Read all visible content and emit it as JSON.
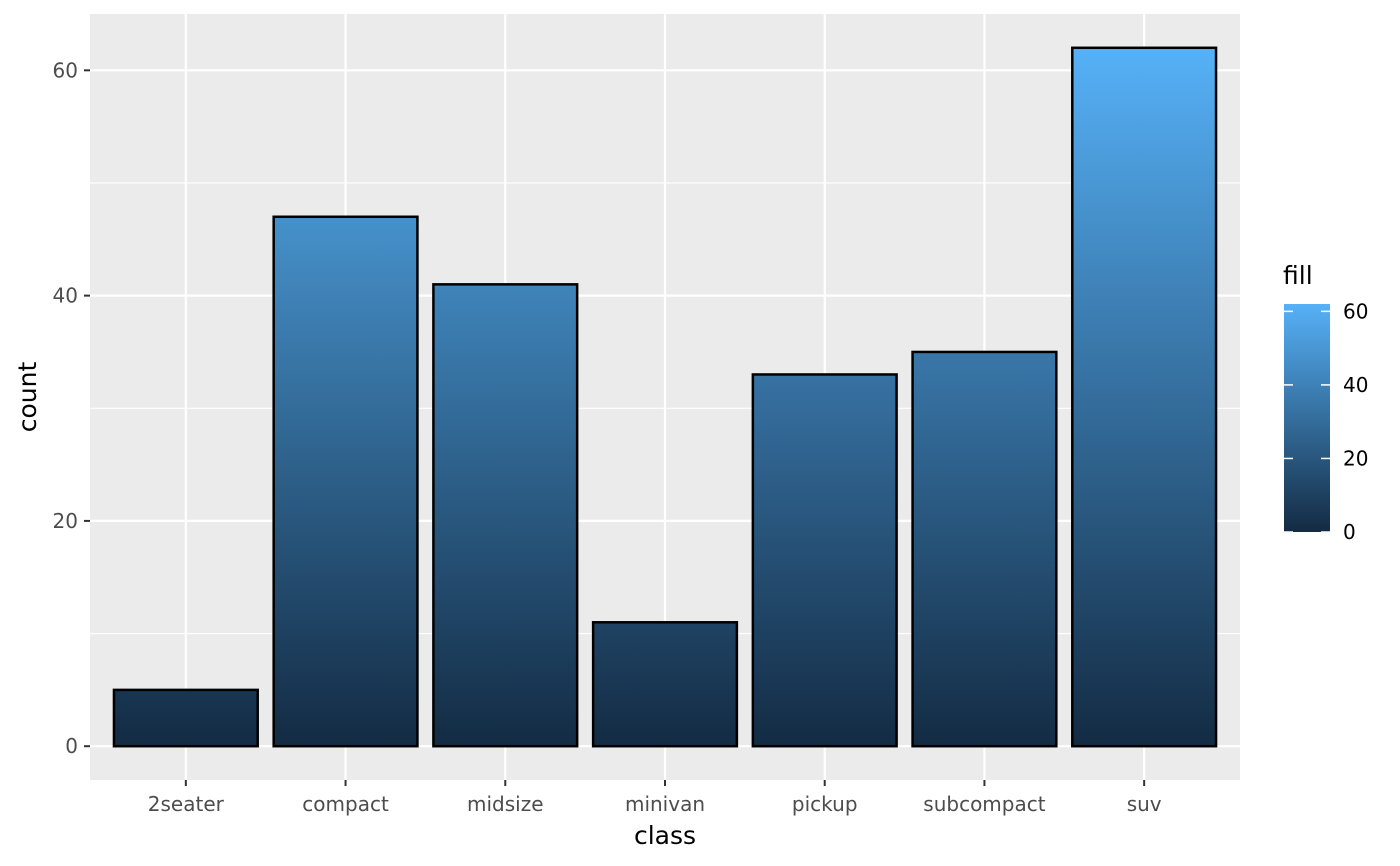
{
  "chart_data": {
    "type": "bar",
    "categories": [
      "2seater",
      "compact",
      "midsize",
      "minivan",
      "pickup",
      "subcompact",
      "suv"
    ],
    "values": [
      5,
      47,
      41,
      11,
      33,
      35,
      62
    ],
    "xlabel": "class",
    "ylabel": "count",
    "ylim": [
      -3,
      65
    ],
    "yticks": [
      0,
      20,
      40,
      60
    ],
    "grid": true,
    "legend": {
      "title": "fill",
      "placement": "right",
      "ticks": [
        0,
        20,
        40,
        60
      ],
      "range": [
        0,
        62
      ]
    },
    "colors": {
      "panel": "#ebebeb",
      "grid": "#ffffff",
      "bar_outline": "#000000",
      "gradient_low": "#132b43",
      "gradient_high": "#56b1f7"
    }
  }
}
